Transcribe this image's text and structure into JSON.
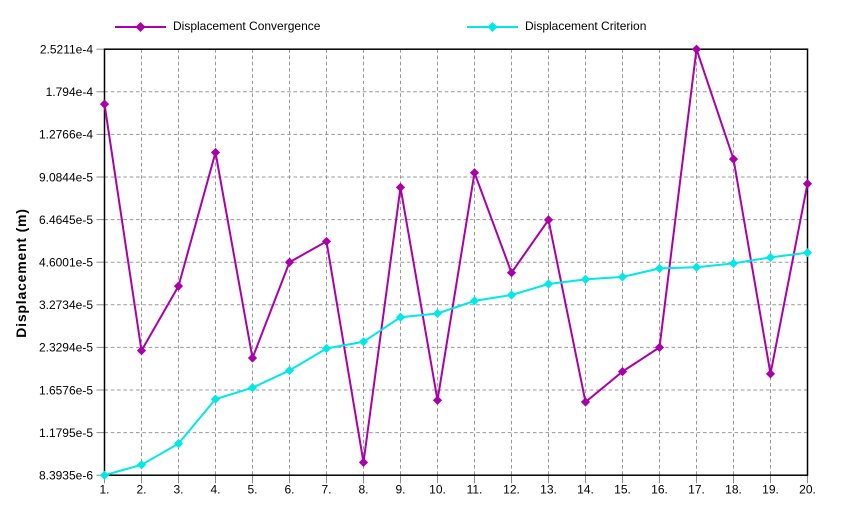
{
  "chart_data": {
    "type": "line",
    "title": "",
    "xlabel": "",
    "ylabel": "Displacement (m)",
    "x": [
      1,
      2,
      3,
      4,
      5,
      6,
      7,
      8,
      9,
      10,
      11,
      12,
      13,
      14,
      15,
      16,
      17,
      18,
      19,
      20
    ],
    "x_tick_labels": [
      "1.",
      "2.",
      "3.",
      "4.",
      "5.",
      "6.",
      "7.",
      "8.",
      "9.",
      "10.",
      "11.",
      "12.",
      "13.",
      "14.",
      "15.",
      "16.",
      "17.",
      "18.",
      "19.",
      "20."
    ],
    "y_scale": "log",
    "ylim": [
      8.3935e-06,
      0.00025211
    ],
    "y_tick_values": [
      8.3935e-06,
      1.1795e-05,
      1.6576e-05,
      2.3294e-05,
      3.2734e-05,
      4.6001e-05,
      6.4645e-05,
      9.0844e-05,
      0.00012766,
      0.0001794,
      0.00025211
    ],
    "y_tick_labels": [
      "8.3935e-6",
      "1.1795e-5",
      "1.6576e-5",
      "2.3294e-5",
      "3.2734e-5",
      "4.6001e-5",
      "6.4645e-5",
      "9.0844e-5",
      "1.2766e-4",
      "1.794e-4",
      "2.5211e-4"
    ],
    "grid": "both-dashed",
    "legend_position": "top",
    "series": [
      {
        "name": "Displacement Convergence",
        "color": "#AA00AA",
        "marker": "diamond",
        "values": [
          0.0001626,
          2.27e-05,
          3.8e-05,
          0.0001105,
          2.14e-05,
          4.6e-05,
          5.43e-05,
          9.3e-06,
          8.36e-05,
          1.527e-05,
          9.4e-05,
          4.23e-05,
          6.45e-05,
          1.506e-05,
          1.92e-05,
          2.33e-05,
          0.00025211,
          0.0001048,
          1.886e-05,
          8.61e-05
        ]
      },
      {
        "name": "Displacement Criterion",
        "color": "#00E8E8",
        "marker": "diamond",
        "values": [
          8.3935e-06,
          9.12e-06,
          1.08e-05,
          1.541e-05,
          1.688e-05,
          1.938e-05,
          2.309e-05,
          2.436e-05,
          2.963e-05,
          3.054e-05,
          3.377e-05,
          3.54e-05,
          3.864e-05,
          4.01e-05,
          4.09e-05,
          4.377e-05,
          4.42e-05,
          4.557e-05,
          4.781e-05,
          4.963e-05
        ]
      }
    ]
  },
  "styles": {
    "background": "#ffffff",
    "plot_border_color": "#000000",
    "grid_color": "#989898",
    "tick_color": "#8c8c8c",
    "text_color": "#000000"
  }
}
